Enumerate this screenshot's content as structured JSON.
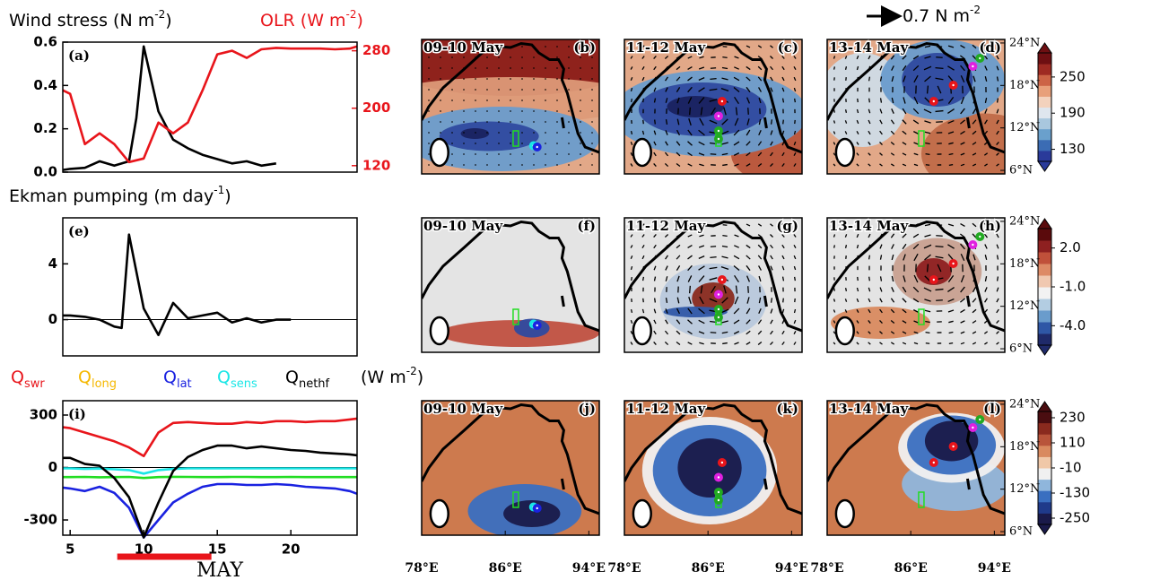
{
  "chart_data": [
    {
      "type": "line",
      "title": "Wind stress (N m-2)",
      "y2_title": "OLR (W m-2)",
      "panel_label": "(a)",
      "xlim": [
        4.5,
        24.5
      ],
      "ylim": [
        0,
        0.6
      ],
      "yticks": [
        {
          "value": 0,
          "label": "0.0"
        },
        0.2,
        0.4,
        0.6
      ],
      "y2lim": [
        111,
        292
      ],
      "y2ticks": [
        120,
        200,
        280
      ],
      "y2color": "#e8151b",
      "series": [
        {
          "color": "#000000",
          "x": [
            4.5,
            5,
            6,
            7,
            8,
            9,
            9.5,
            10,
            11,
            12,
            13,
            14,
            15,
            16,
            17,
            18,
            19
          ],
          "values": [
            0.01,
            0.015,
            0.02,
            0.05,
            0.03,
            0.05,
            0.25,
            0.58,
            0.28,
            0.15,
            0.11,
            0.08,
            0.06,
            0.04,
            0.05,
            0.03,
            0.04
          ]
        },
        {
          "color": "#e8151b",
          "axis": "y2",
          "x": [
            4.5,
            5,
            6,
            7,
            8,
            9,
            10,
            11,
            12,
            13,
            14,
            15,
            16,
            17,
            18,
            19,
            20,
            21,
            22,
            23,
            24,
            24.5
          ],
          "values": [
            225,
            220,
            150,
            165,
            150,
            125,
            130,
            180,
            165,
            180,
            225,
            275,
            280,
            270,
            282,
            284,
            283,
            283,
            283,
            282,
            283,
            286
          ]
        }
      ]
    },
    {
      "type": "line",
      "title": "Ekman pumping (m day-1)",
      "panel_label": "(e)",
      "xlim": [
        4.5,
        24.5
      ],
      "ylim": [
        -2.6,
        7.3
      ],
      "yticks": [
        0,
        4
      ],
      "zero_line": true,
      "series": [
        {
          "color": "#000000",
          "x": [
            4.5,
            5,
            6,
            7,
            8,
            8.5,
            9,
            10,
            11,
            12,
            13,
            14,
            15,
            16,
            17,
            18,
            19,
            20
          ],
          "values": [
            0.3,
            0.3,
            0.2,
            0,
            -0.5,
            -0.6,
            6.1,
            0.8,
            -1.1,
            1.2,
            0.1,
            0.3,
            0.5,
            -0.2,
            0.1,
            -0.2,
            0,
            0
          ]
        }
      ]
    },
    {
      "type": "line",
      "panel_label": "(i)",
      "units": "(W m-2)",
      "x_label": "MAY",
      "xlim": [
        4.5,
        24.5
      ],
      "ylim": [
        -387,
        382
      ],
      "yticks": [
        -300,
        0,
        300
      ],
      "xticks": [
        5,
        10,
        15,
        20
      ],
      "zero_line": true,
      "highlight_x": [
        8.2,
        14.6
      ],
      "highlight_color": "#e8151b",
      "x": [
        4.5,
        5,
        6,
        7,
        8,
        9,
        10,
        11,
        12,
        13,
        14,
        15,
        16,
        17,
        18,
        19,
        20,
        21,
        22,
        23,
        24,
        24.5
      ],
      "series": [
        {
          "name": "Qswr",
          "color": "#e8151b",
          "values": [
            230,
            225,
            200,
            175,
            150,
            115,
            65,
            200,
            255,
            260,
            255,
            250,
            250,
            260,
            255,
            265,
            265,
            260,
            265,
            265,
            275,
            280
          ]
        },
        {
          "name": "Qlong",
          "color": "#22dd22",
          "label_color": "#f5b800",
          "values": [
            -55,
            -55,
            -54,
            -56,
            -55,
            -54,
            -60,
            -55,
            -53,
            -54,
            -55,
            -55,
            -54,
            -54,
            -55,
            -55,
            -54,
            -55,
            -55,
            -55,
            -55,
            -55
          ]
        },
        {
          "name": "Qlat",
          "color": "#1a22e0",
          "values": [
            -115,
            -120,
            -135,
            -110,
            -145,
            -230,
            -400,
            -300,
            -200,
            -150,
            -110,
            -95,
            -95,
            -100,
            -100,
            -95,
            -100,
            -110,
            -115,
            -120,
            -135,
            -150
          ]
        },
        {
          "name": "Qsens",
          "color": "#19e6e6",
          "values": [
            -5,
            -5,
            -8,
            -6,
            -10,
            -15,
            -35,
            -15,
            -8,
            -5,
            -5,
            -5,
            -5,
            -5,
            -5,
            -5,
            -5,
            -5,
            -5,
            -5,
            -5,
            -5
          ]
        },
        {
          "name": "Qnethf",
          "color": "#000000",
          "values": [
            55,
            55,
            20,
            10,
            -60,
            -170,
            -400,
            -200,
            -20,
            60,
            100,
            125,
            125,
            110,
            120,
            110,
            100,
            95,
            85,
            80,
            75,
            70
          ]
        }
      ]
    },
    {
      "type": "colorbar",
      "ylim": [
        110,
        290
      ],
      "yticks": [
        130,
        190,
        250
      ],
      "colors": [
        "#2a3a9a",
        "#3b6cb4",
        "#6aa0cc",
        "#a9c7de",
        "#dfe6ee",
        "#f3d2bd",
        "#e8a07a",
        "#cc6446",
        "#9e2a22",
        "#6e0f12"
      ]
    },
    {
      "type": "colorbar",
      "ylim": [
        -5.5,
        3.5
      ],
      "yticks": [
        {
          "value": -4,
          "label": "-4.0"
        },
        {
          "value": -1,
          "label": "-1.0"
        },
        {
          "value": 2,
          "label": "2.0"
        }
      ],
      "colors": [
        "#1f2a6a",
        "#2f57a6",
        "#6a9ccc",
        "#b3cde2",
        "#f2f2f2",
        "#f0c8b0",
        "#dd8a66",
        "#c0503a",
        "#8e2020",
        "#5a0a0c"
      ]
    },
    {
      "type": "colorbar",
      "ylim": [
        -280,
        260
      ],
      "yticks": [
        -250,
        -130,
        -10,
        110,
        230
      ],
      "colors": [
        "#1a1a4a",
        "#1f3a8a",
        "#3a6fc0",
        "#8fb6dc",
        "#f0f0f0",
        "#f0c8a8",
        "#d98a5f",
        "#b8543a",
        "#8a2a1e",
        "#4a0d10"
      ]
    }
  ],
  "maps": {
    "vector_scale": "0.7 N m-2",
    "lonlim": [
      78,
      95
    ],
    "latlim": [
      5.5,
      24.5
    ],
    "lon_ticks": [
      {
        "value": 78,
        "label": "78°E"
      },
      {
        "value": 86,
        "label": "86°E"
      },
      {
        "value": 94,
        "label": "94°E"
      }
    ],
    "lat_ticks": [
      {
        "value": 6,
        "label": "6°N"
      },
      {
        "value": 12,
        "label": "12°N"
      },
      {
        "value": 18,
        "label": "18°N"
      },
      {
        "value": 24,
        "label": "24°N"
      }
    ],
    "panels": [
      {
        "date": "09-10 May",
        "label": "(b)"
      },
      {
        "date": "11-12 May",
        "label": "(c)"
      },
      {
        "date": "13-14 May",
        "label": "(d)"
      },
      {
        "date": "09-10 May",
        "label": "(f)"
      },
      {
        "date": "11-12 May",
        "label": "(g)"
      },
      {
        "date": "13-14 May",
        "label": "(h)"
      },
      {
        "date": "09-10 May",
        "label": "(j)"
      },
      {
        "date": "11-12 May",
        "label": "(k)"
      },
      {
        "date": "13-14 May",
        "label": "(l)"
      }
    ]
  }
}
